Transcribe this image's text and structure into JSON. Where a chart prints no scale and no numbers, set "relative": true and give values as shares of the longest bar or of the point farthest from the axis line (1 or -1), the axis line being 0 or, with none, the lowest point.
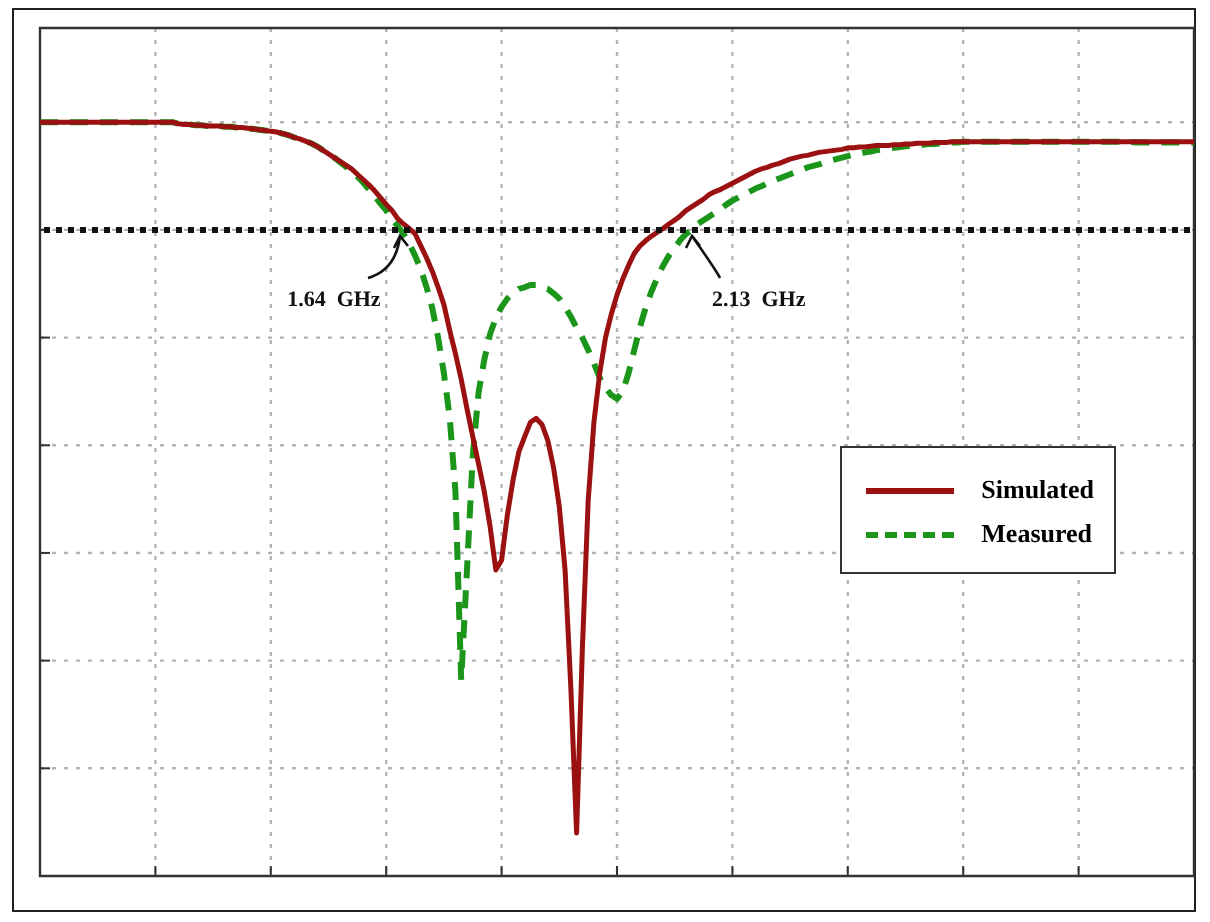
{
  "chart_data": {
    "type": "line",
    "relative": true,
    "grid": true,
    "legend": "right",
    "categories": [
      null,
      null,
      null,
      null,
      null,
      null,
      null,
      null,
      null,
      null,
      null,
      null,
      null,
      null,
      null,
      null,
      null,
      null,
      null,
      null,
      null,
      null,
      null,
      null,
      null,
      null,
      null,
      null,
      null,
      null,
      null,
      null,
      null,
      null,
      null,
      null,
      null,
      null,
      null,
      null,
      null,
      null,
      null,
      null,
      null,
      null,
      null,
      null,
      null,
      null,
      null,
      null,
      null,
      null,
      null,
      null,
      null,
      null,
      null,
      null,
      null,
      null,
      null,
      null,
      null,
      null,
      null,
      null,
      null,
      null,
      null,
      null,
      null,
      null,
      null,
      null,
      null,
      null,
      null,
      null,
      null,
      null,
      null,
      null,
      null,
      null,
      null,
      null,
      null,
      null,
      null,
      null,
      null,
      null,
      null,
      null,
      null,
      null,
      null,
      null,
      null,
      null,
      null,
      null,
      null,
      null,
      null,
      null,
      null,
      null,
      null,
      null,
      null,
      null,
      null,
      null,
      null,
      null,
      null,
      null,
      null,
      null,
      null,
      null,
      null,
      null,
      null,
      null,
      null,
      null,
      null,
      null,
      null,
      null,
      null,
      null,
      null,
      null,
      null,
      null,
      null,
      null,
      null,
      null,
      null,
      null,
      null,
      null,
      null,
      null,
      null,
      null,
      null,
      null,
      null,
      null,
      null,
      null,
      null,
      null,
      null,
      null,
      null,
      null,
      null,
      null,
      null,
      null,
      null,
      null,
      null,
      null,
      null,
      null,
      null,
      null,
      null,
      null,
      null,
      null,
      null,
      null,
      null,
      null,
      null,
      null,
      null,
      null,
      null,
      null,
      null,
      null,
      null,
      null,
      null,
      null,
      null,
      null,
      null,
      null,
      null
    ],
    "series": [
      {
        "name": "Simulated",
        "color": "#9b1111",
        "line_style": "solid",
        "values": [
          1.0,
          1.0,
          1.0,
          1.0,
          1.0,
          1.0,
          1.0,
          1.0,
          1.0,
          1.0,
          1.0,
          1.0,
          1.0,
          1.0,
          1.0,
          1.0,
          1.0,
          1.0,
          1.0,
          1.0,
          1.0,
          1.0,
          1.0,
          1.0,
          0.998,
          0.997,
          0.997,
          0.996,
          0.996,
          0.995,
          0.995,
          0.995,
          0.994,
          0.994,
          0.993,
          0.993,
          0.992,
          0.991,
          0.99,
          0.989,
          0.988,
          0.987,
          0.985,
          0.983,
          0.98,
          0.978,
          0.975,
          0.972,
          0.968,
          0.963,
          0.958,
          0.953,
          0.948,
          0.943,
          0.938,
          0.931,
          0.924,
          0.917,
          0.909,
          0.9,
          0.891,
          0.883,
          0.872,
          0.865,
          0.859,
          0.852,
          0.836,
          0.82,
          0.802,
          0.781,
          0.758,
          0.724,
          0.693,
          0.659,
          0.62,
          0.583,
          0.547,
          0.51,
          0.464,
          0.406,
          0.419,
          0.479,
          0.526,
          0.563,
          0.583,
          0.602,
          0.607,
          0.599,
          0.578,
          0.542,
          0.49,
          0.406,
          0.25,
          0.057,
          0.302,
          0.497,
          0.602,
          0.667,
          0.714,
          0.745,
          0.771,
          0.792,
          0.81,
          0.826,
          0.836,
          0.843,
          0.849,
          0.854,
          0.859,
          0.865,
          0.87,
          0.876,
          0.883,
          0.888,
          0.893,
          0.898,
          0.904,
          0.908,
          0.911,
          0.915,
          0.919,
          0.923,
          0.927,
          0.931,
          0.935,
          0.938,
          0.94,
          0.943,
          0.945,
          0.948,
          0.951,
          0.953,
          0.955,
          0.956,
          0.958,
          0.96,
          0.961,
          0.962,
          0.963,
          0.964,
          0.966,
          0.966,
          0.967,
          0.967,
          0.968,
          0.969,
          0.969,
          0.969,
          0.97,
          0.97,
          0.971,
          0.971,
          0.972,
          0.972,
          0.972,
          0.973,
          0.973,
          0.973,
          0.974,
          0.974,
          0.974,
          0.974,
          0.974,
          0.974,
          0.974,
          0.974,
          0.974,
          0.974,
          0.974,
          0.974,
          0.974,
          0.974,
          0.974,
          0.974,
          0.974,
          0.974,
          0.974,
          0.974,
          0.974,
          0.974,
          0.974,
          0.974,
          0.974,
          0.974,
          0.974,
          0.974,
          0.974,
          0.974,
          0.974,
          0.974,
          0.974,
          0.974,
          0.974,
          0.974,
          0.974,
          0.974,
          0.974,
          0.974,
          0.974,
          0.974,
          0.974
        ]
      },
      {
        "name": "Measured",
        "color": "#1b961b",
        "line_style": "dashed",
        "values": [
          1.0,
          1.0,
          1.0,
          1.0,
          1.0,
          1.0,
          1.0,
          1.0,
          1.0,
          1.0,
          1.0,
          1.0,
          1.0,
          1.0,
          1.0,
          1.0,
          1.0,
          1.0,
          1.0,
          1.0,
          1.0,
          1.0,
          1.0,
          1.0,
          0.998,
          0.997,
          0.997,
          0.996,
          0.996,
          0.995,
          0.995,
          0.995,
          0.994,
          0.994,
          0.993,
          0.993,
          0.992,
          0.991,
          0.99,
          0.989,
          0.988,
          0.987,
          0.985,
          0.983,
          0.98,
          0.978,
          0.975,
          0.972,
          0.968,
          0.963,
          0.958,
          0.953,
          0.947,
          0.941,
          0.935,
          0.928,
          0.92,
          0.911,
          0.902,
          0.892,
          0.883,
          0.872,
          0.862,
          0.852,
          0.839,
          0.823,
          0.805,
          0.781,
          0.753,
          0.714,
          0.667,
          0.609,
          0.51,
          0.26,
          0.406,
          0.557,
          0.641,
          0.685,
          0.719,
          0.74,
          0.755,
          0.766,
          0.773,
          0.779,
          0.781,
          0.784,
          0.784,
          0.781,
          0.779,
          0.773,
          0.766,
          0.755,
          0.742,
          0.727,
          0.714,
          0.698,
          0.68,
          0.661,
          0.648,
          0.638,
          0.633,
          0.643,
          0.667,
          0.698,
          0.729,
          0.755,
          0.776,
          0.794,
          0.81,
          0.823,
          0.833,
          0.844,
          0.852,
          0.857,
          0.865,
          0.87,
          0.875,
          0.88,
          0.885,
          0.891,
          0.896,
          0.9,
          0.904,
          0.908,
          0.912,
          0.915,
          0.919,
          0.922,
          0.925,
          0.928,
          0.931,
          0.934,
          0.937,
          0.94,
          0.942,
          0.944,
          0.947,
          0.949,
          0.951,
          0.953,
          0.955,
          0.957,
          0.958,
          0.96,
          0.961,
          0.963,
          0.964,
          0.965,
          0.966,
          0.967,
          0.968,
          0.969,
          0.97,
          0.97,
          0.971,
          0.971,
          0.972,
          0.972,
          0.973,
          0.973,
          0.974,
          0.974,
          0.974,
          0.974,
          0.974,
          0.974,
          0.974,
          0.974,
          0.974,
          0.974,
          0.974,
          0.974,
          0.974,
          0.974,
          0.974,
          0.974,
          0.974,
          0.974,
          0.974,
          0.974,
          0.974,
          0.974,
          0.974,
          0.974,
          0.974,
          0.974,
          0.974,
          0.974,
          0.974,
          0.974,
          0.973,
          0.973,
          0.973,
          0.973,
          0.973,
          0.973,
          0.973,
          0.973,
          0.973,
          0.973,
          0.973
        ]
      }
    ],
    "ref_lines": [
      {
        "axis": "y",
        "value": 0.857,
        "color": "#111111",
        "line_style": "dotted"
      }
    ],
    "annotations": [
      {
        "text": "1.64  GHz",
        "y": 0.857
      },
      {
        "text": "2.13  GHz",
        "y": 0.857
      }
    ]
  }
}
